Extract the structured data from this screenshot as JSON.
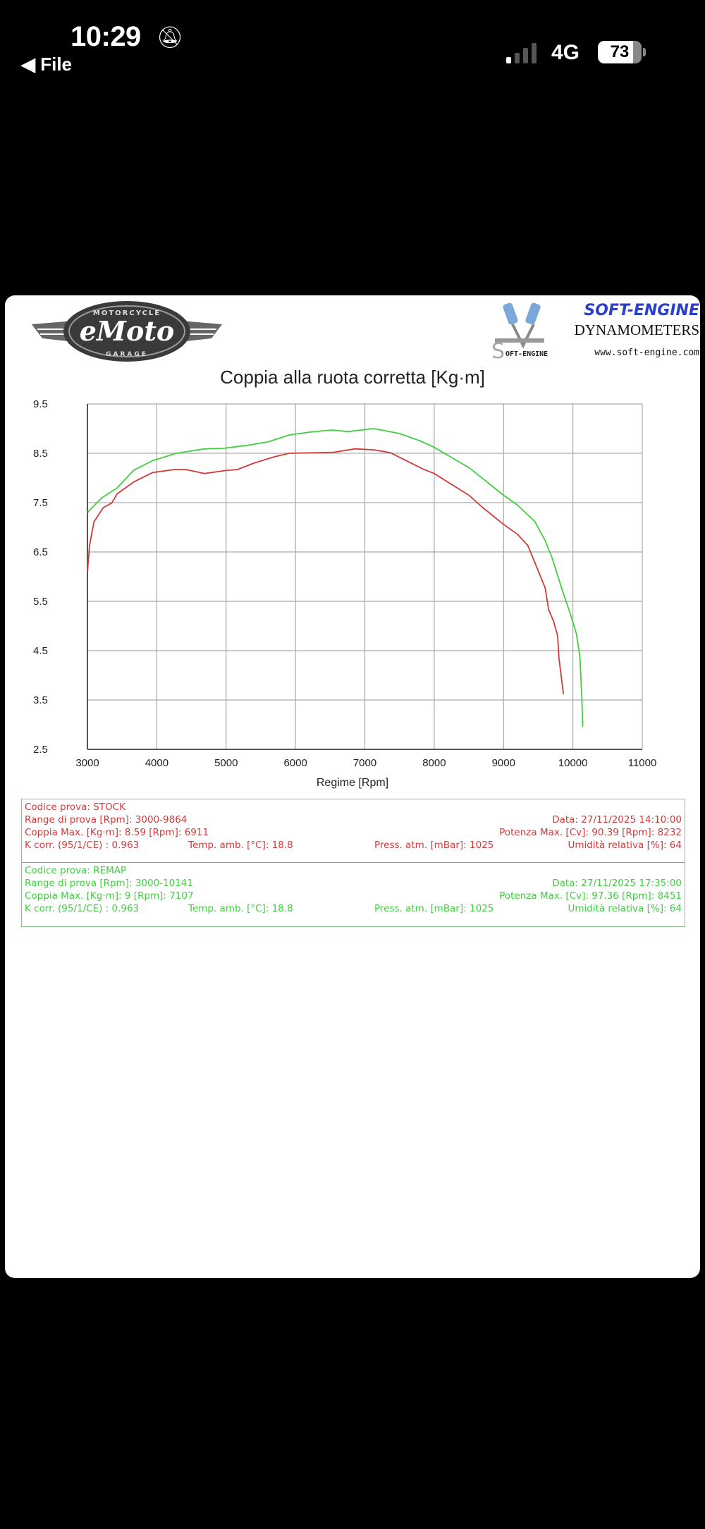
{
  "status_bar": {
    "time": "10:29",
    "back_label": "File",
    "network": "4G",
    "battery": "73",
    "battery_level": 73
  },
  "logos": {
    "left_top": "MOTORCYCLE",
    "left_main": "eMoto",
    "left_bottom": "GARAGE",
    "right_brand": "SOFT-ENGINE",
    "right_sub": "DYNAMOMETERS",
    "right_url": "www.soft-engine.com",
    "right_mark": "OFT-ENGINE"
  },
  "chart_data": {
    "type": "line",
    "title": "Coppia alla ruota corretta [Kg·m]",
    "xlabel": "Regime [Rpm]",
    "ylabel": "",
    "xlim": [
      3000,
      11000
    ],
    "ylim": [
      2.5,
      9.5
    ],
    "xticks": [
      "3000",
      "4000",
      "5000",
      "6000",
      "7000",
      "8000",
      "9000",
      "10000",
      "11000"
    ],
    "yticks": [
      "9.5",
      "8.5",
      "7.5",
      "6.5",
      "5.5",
      "4.5",
      "3.5",
      "2.5"
    ],
    "grid": true,
    "colors": {
      "STOCK": "#d23a3a",
      "REMAP": "#3fcf3f"
    },
    "series": [
      {
        "name": "STOCK",
        "color": "#d23a3a",
        "points": [
          [
            3000,
            6.1
          ],
          [
            3030,
            6.63
          ],
          [
            3095,
            7.11
          ],
          [
            3230,
            7.4
          ],
          [
            3350,
            7.49
          ],
          [
            3430,
            7.68
          ],
          [
            3670,
            7.92
          ],
          [
            3940,
            8.11
          ],
          [
            4250,
            8.17
          ],
          [
            4420,
            8.17
          ],
          [
            4690,
            8.09
          ],
          [
            4990,
            8.15
          ],
          [
            5160,
            8.17
          ],
          [
            5400,
            8.3
          ],
          [
            5700,
            8.43
          ],
          [
            5910,
            8.5
          ],
          [
            6550,
            8.52
          ],
          [
            6860,
            8.59
          ],
          [
            7130,
            8.57
          ],
          [
            7370,
            8.51
          ],
          [
            7840,
            8.18
          ],
          [
            8000,
            8.09
          ],
          [
            8500,
            7.65
          ],
          [
            8700,
            7.4
          ],
          [
            9000,
            7.06
          ],
          [
            9200,
            6.86
          ],
          [
            9350,
            6.63
          ],
          [
            9500,
            6.12
          ],
          [
            9600,
            5.77
          ],
          [
            9650,
            5.33
          ],
          [
            9720,
            5.1
          ],
          [
            9780,
            4.8
          ],
          [
            9800,
            4.34
          ],
          [
            9864,
            3.62
          ]
        ]
      },
      {
        "name": "REMAP",
        "color": "#3fcf3f",
        "points": [
          [
            3000,
            7.3
          ],
          [
            3200,
            7.59
          ],
          [
            3430,
            7.8
          ],
          [
            3670,
            8.16
          ],
          [
            3940,
            8.35
          ],
          [
            4280,
            8.5
          ],
          [
            4690,
            8.59
          ],
          [
            4960,
            8.6
          ],
          [
            5300,
            8.66
          ],
          [
            5600,
            8.73
          ],
          [
            5910,
            8.87
          ],
          [
            6210,
            8.93
          ],
          [
            6520,
            8.97
          ],
          [
            6760,
            8.94
          ],
          [
            7130,
            9.0
          ],
          [
            7500,
            8.9
          ],
          [
            7800,
            8.75
          ],
          [
            8000,
            8.62
          ],
          [
            8500,
            8.21
          ],
          [
            9000,
            7.65
          ],
          [
            9200,
            7.45
          ],
          [
            9450,
            7.12
          ],
          [
            9600,
            6.73
          ],
          [
            9700,
            6.38
          ],
          [
            9850,
            5.71
          ],
          [
            9950,
            5.3
          ],
          [
            10050,
            4.85
          ],
          [
            10100,
            4.39
          ],
          [
            10130,
            3.52
          ],
          [
            10141,
            2.96
          ]
        ]
      }
    ]
  },
  "info": [
    {
      "color": "#d23a3a",
      "codice": "Codice prova: STOCK",
      "range": "Range di prova [Rpm]: 3000-9864",
      "data": "Data: 27/11/2025   14:10:00",
      "coppia": "Coppia Max. [Kg·m]: 8.59   [Rpm]: 6911",
      "potenza": "Potenza Max. [Cv]: 90.39   [Rpm]: 8232",
      "kcorr": "K corr. (95/1/CE) : 0.963",
      "temp": "Temp. amb. [°C]: 18.8",
      "press": "Press. atm. [mBar]: 1025",
      "umid": "Umidità relativa [%]: 64"
    },
    {
      "color": "#3fcf3f",
      "codice": "Codice prova: REMAP",
      "range": "Range di prova [Rpm]: 3000-10141",
      "data": "Data: 27/11/2025   17:35:00",
      "coppia": "Coppia Max. [Kg·m]: 9   [Rpm]: 7107",
      "potenza": "Potenza Max. [Cv]: 97.36   [Rpm]: 8451",
      "kcorr": "K corr. (95/1/CE) : 0.963",
      "temp": "Temp. amb. [°C]: 18.8",
      "press": "Press. atm. [mBar]: 1025",
      "umid": "Umidità relativa [%]: 64"
    }
  ]
}
